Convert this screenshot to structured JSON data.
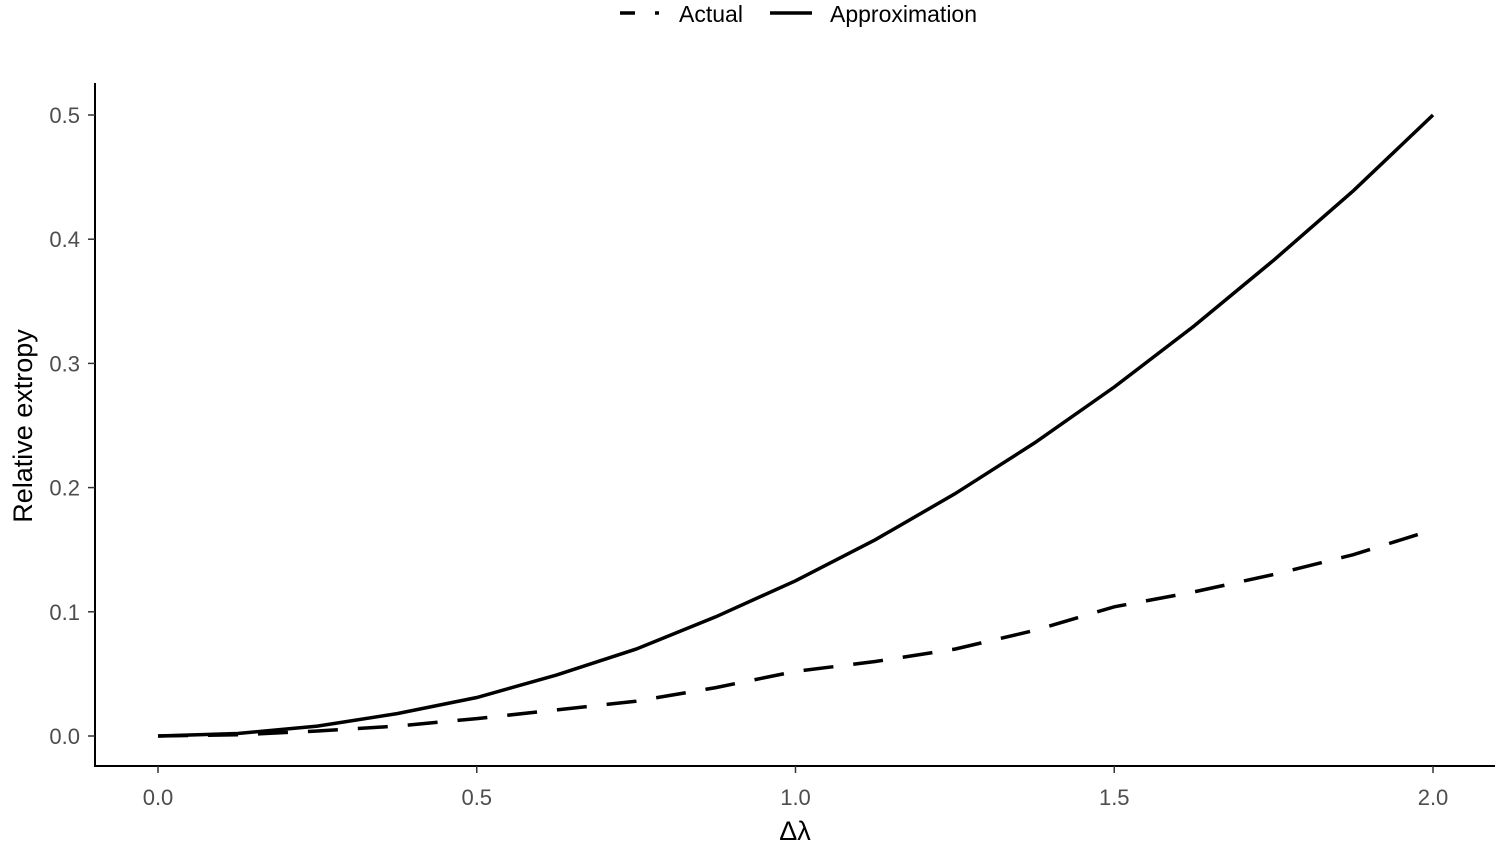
{
  "chart_data": {
    "type": "line",
    "title": "",
    "xlabel": "Δλ",
    "ylabel": "Relative extropy",
    "xlim": [
      0,
      2
    ],
    "ylim": [
      0,
      0.5
    ],
    "x_ticks": [
      "0.0",
      "0.5",
      "1.0",
      "1.5",
      "2.0"
    ],
    "y_ticks": [
      "0.0",
      "0.1",
      "0.2",
      "0.3",
      "0.4",
      "0.5"
    ],
    "grid": false,
    "legend_position": "top",
    "x": [
      0.0,
      0.125,
      0.25,
      0.375,
      0.5,
      0.625,
      0.75,
      0.875,
      1.0,
      1.125,
      1.25,
      1.375,
      1.5,
      1.625,
      1.75,
      1.875,
      2.0
    ],
    "series": [
      {
        "name": "Actual",
        "linetype": "dashed",
        "values": [
          0.0,
          0.001,
          0.004,
          0.008,
          0.014,
          0.021,
          0.028,
          0.039,
          0.052,
          0.06,
          0.07,
          0.085,
          0.104,
          0.116,
          0.13,
          0.146,
          0.166
        ]
      },
      {
        "name": "Approximation",
        "linetype": "solid",
        "values": [
          0.0,
          0.002,
          0.008,
          0.018,
          0.031,
          0.049,
          0.07,
          0.096,
          0.125,
          0.158,
          0.195,
          0.236,
          0.281,
          0.33,
          0.383,
          0.439,
          0.5
        ]
      }
    ]
  },
  "legend": {
    "items": [
      {
        "label": "Actual",
        "style": "dashed"
      },
      {
        "label": "Approximation",
        "style": "solid"
      }
    ]
  },
  "colors": {
    "line": "#000000",
    "tick_text": "#4d4d4d",
    "background": "#ffffff"
  }
}
